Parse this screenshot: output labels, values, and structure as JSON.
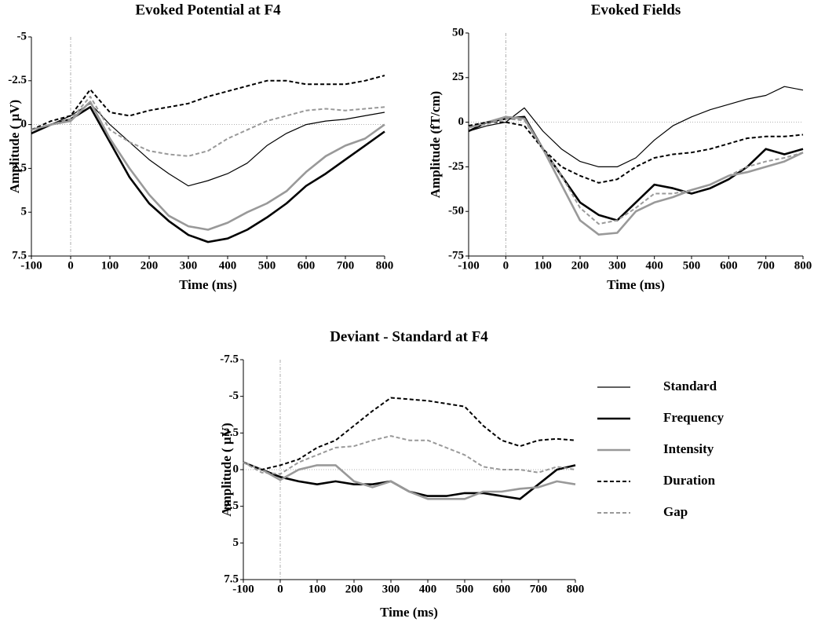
{
  "chart_data": [
    {
      "type": "line",
      "title": "Evoked Potential at F4",
      "x_label": "Time (ms)",
      "y_label": "Amplitude ( µV)",
      "x": [
        -100,
        -50,
        0,
        50,
        100,
        150,
        200,
        250,
        300,
        350,
        400,
        450,
        500,
        550,
        600,
        650,
        700,
        750,
        800
      ],
      "xlim": [
        -100,
        800
      ],
      "xticks": [
        -100,
        0,
        100,
        200,
        300,
        400,
        500,
        600,
        700,
        800
      ],
      "ylim": [
        -5,
        7.5
      ],
      "invert_y": true,
      "yticks": [
        -5,
        -2.5,
        0,
        2.5,
        5,
        7.5
      ],
      "zero_lines": true,
      "series": [
        {
          "color": "#000000",
          "width": 1.2,
          "dash": false,
          "values": [
            0.5,
            0,
            -0.5,
            -1.2,
            0,
            1,
            2,
            2.8,
            3.5,
            3.2,
            2.8,
            2.2,
            1.2,
            0.5,
            0,
            -0.2,
            -0.3,
            -0.5,
            -0.7
          ]
        },
        {
          "color": "#000000",
          "width": 2.6,
          "dash": false,
          "values": [
            0.5,
            0,
            -0.3,
            -1,
            1,
            3,
            4.5,
            5.5,
            6.3,
            6.7,
            6.5,
            6,
            5.3,
            4.5,
            3.5,
            2.8,
            2,
            1.2,
            0.4
          ]
        },
        {
          "color": "#999999",
          "width": 2.6,
          "dash": false,
          "values": [
            0.3,
            0,
            -0.2,
            -1.3,
            0.8,
            2.5,
            4,
            5.2,
            5.8,
            6,
            5.6,
            5,
            4.5,
            3.8,
            2.7,
            1.8,
            1.2,
            0.8,
            0
          ]
        },
        {
          "color": "#000000",
          "width": 2,
          "dash": true,
          "values": [
            0.3,
            -0.2,
            -0.5,
            -2,
            -0.7,
            -0.5,
            -0.8,
            -1,
            -1.2,
            -1.6,
            -1.9,
            -2.2,
            -2.5,
            -2.5,
            -2.3,
            -2.3,
            -2.3,
            -2.5,
            -2.8
          ]
        },
        {
          "color": "#999999",
          "width": 2,
          "dash": true,
          "values": [
            0.3,
            0,
            -0.3,
            -1.6,
            0.3,
            1,
            1.5,
            1.7,
            1.8,
            1.5,
            0.8,
            0.3,
            -0.2,
            -0.5,
            -0.8,
            -0.9,
            -0.8,
            -0.9,
            -1
          ]
        }
      ]
    },
    {
      "type": "line",
      "title": "Evoked Fields",
      "x_label": "Time (ms)",
      "y_label": "Amplitude (fT/cm)",
      "x": [
        -100,
        -50,
        0,
        50,
        100,
        150,
        200,
        250,
        300,
        350,
        400,
        450,
        500,
        550,
        600,
        650,
        700,
        750,
        800
      ],
      "xlim": [
        -100,
        800
      ],
      "xticks": [
        -100,
        0,
        100,
        200,
        300,
        400,
        500,
        600,
        700,
        800
      ],
      "ylim": [
        -75,
        50
      ],
      "invert_y": false,
      "yticks": [
        -75,
        -50,
        -25,
        0,
        25,
        50
      ],
      "zero_lines": true,
      "series": [
        {
          "color": "#000000",
          "width": 1.2,
          "dash": false,
          "values": [
            -5,
            -2,
            0,
            8,
            -5,
            -15,
            -22,
            -25,
            -25,
            -20,
            -10,
            -2,
            3,
            7,
            10,
            13,
            15,
            20,
            18
          ]
        },
        {
          "color": "#000000",
          "width": 2.6,
          "dash": false,
          "values": [
            -5,
            0,
            2,
            3,
            -15,
            -30,
            -45,
            -52,
            -55,
            -45,
            -35,
            -37,
            -40,
            -37,
            -32,
            -25,
            -15,
            -18,
            -15
          ]
        },
        {
          "color": "#999999",
          "width": 2.6,
          "dash": false,
          "values": [
            -3,
            0,
            3,
            2,
            -15,
            -35,
            -55,
            -63,
            -62,
            -50,
            -45,
            -42,
            -38,
            -35,
            -30,
            -28,
            -25,
            -22,
            -17
          ]
        },
        {
          "color": "#000000",
          "width": 2,
          "dash": true,
          "values": [
            -2,
            0,
            0,
            -2,
            -15,
            -25,
            -30,
            -34,
            -32,
            -25,
            -20,
            -18,
            -17,
            -15,
            -12,
            -9,
            -8,
            -8,
            -7
          ]
        },
        {
          "color": "#999999",
          "width": 2,
          "dash": true,
          "values": [
            -3,
            -1,
            2,
            1,
            -15,
            -30,
            -48,
            -57,
            -55,
            -48,
            -40,
            -40,
            -38,
            -35,
            -30,
            -25,
            -22,
            -20,
            -17
          ]
        }
      ]
    },
    {
      "type": "line",
      "title": "Deviant - Standard at F4",
      "x_label": "Time (ms)",
      "y_label": "Amplitude ( µV)",
      "x": [
        -100,
        -50,
        0,
        50,
        100,
        150,
        200,
        250,
        300,
        350,
        400,
        450,
        500,
        550,
        600,
        650,
        700,
        750,
        800
      ],
      "xlim": [
        -100,
        800
      ],
      "xticks": [
        -100,
        0,
        100,
        200,
        300,
        400,
        500,
        600,
        700,
        800
      ],
      "ylim": [
        -7.5,
        7.5
      ],
      "invert_y": true,
      "yticks": [
        -7.5,
        -5,
        -2.5,
        0,
        2.5,
        5,
        7.5
      ],
      "zero_lines": true,
      "series": [
        {
          "color": "#000000",
          "width": 2.6,
          "dash": false,
          "values": [
            -0.5,
            0,
            0.5,
            0.8,
            1,
            0.8,
            1,
            1,
            0.8,
            1.5,
            1.8,
            1.8,
            1.6,
            1.6,
            1.8,
            2,
            1,
            0,
            -0.3
          ]
        },
        {
          "color": "#999999",
          "width": 2.6,
          "dash": false,
          "values": [
            -0.5,
            0,
            0.7,
            0,
            -0.3,
            -0.3,
            0.8,
            1.2,
            0.8,
            1.5,
            2,
            2,
            2,
            1.5,
            1.5,
            1.3,
            1.2,
            0.8,
            1
          ]
        },
        {
          "color": "#000000",
          "width": 2,
          "dash": true,
          "values": [
            -0.5,
            0,
            -0.3,
            -0.7,
            -1.5,
            -2,
            -3,
            -4,
            -4.9,
            -4.8,
            -4.7,
            -4.5,
            -4.3,
            -3,
            -2,
            -1.6,
            -2,
            -2.1,
            -2
          ]
        },
        {
          "color": "#999999",
          "width": 2,
          "dash": true,
          "values": [
            -0.5,
            0.2,
            0.3,
            -0.5,
            -1,
            -1.5,
            -1.6,
            -2,
            -2.3,
            -2,
            -2,
            -1.5,
            -1,
            -0.2,
            0,
            0,
            0.2,
            -0.2,
            0
          ]
        }
      ],
      "legend_position": "right",
      "legend": [
        {
          "name": "Standard",
          "color": "#000000",
          "width": 1.2,
          "dash": false
        },
        {
          "name": "Frequency",
          "color": "#000000",
          "width": 2.6,
          "dash": false
        },
        {
          "name": "Intensity",
          "color": "#999999",
          "width": 2.6,
          "dash": false
        },
        {
          "name": "Duration",
          "color": "#000000",
          "width": 2,
          "dash": true
        },
        {
          "name": "Gap",
          "color": "#999999",
          "width": 2,
          "dash": true
        }
      ]
    }
  ]
}
